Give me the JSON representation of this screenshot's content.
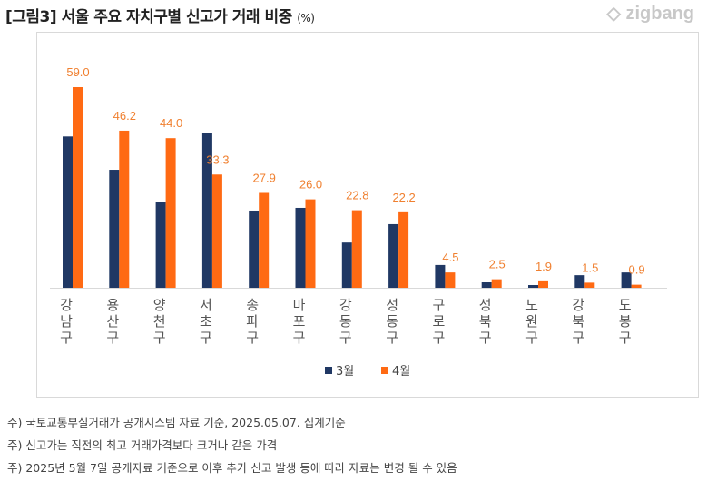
{
  "title": "[그림3] 서울 주요 자치구별 신고가 거래 비중",
  "title_unit": "(%)",
  "logo": "zigbang",
  "chart_data": {
    "type": "bar",
    "categories": [
      "강남구",
      "용산구",
      "양천구",
      "서초구",
      "송파구",
      "마포구",
      "강동구",
      "성동구",
      "구로구",
      "성북구",
      "노원구",
      "강북구",
      "도봉구"
    ],
    "series": [
      {
        "name": "3월",
        "color": "#203864",
        "values": [
          44.5,
          34.7,
          25.3,
          45.6,
          22.7,
          23.5,
          13.3,
          18.7,
          6.7,
          1.6,
          0.8,
          3.7,
          4.5
        ]
      },
      {
        "name": "4월",
        "color": "#FF6A13",
        "values": [
          59.0,
          46.2,
          44.0,
          33.3,
          27.9,
          26.0,
          22.8,
          22.2,
          4.5,
          2.5,
          1.9,
          1.5,
          0.9
        ]
      }
    ],
    "data_labels": [
      "59.0",
      "46.2",
      "44.0",
      "33.3",
      "27.9",
      "26.0",
      "22.8",
      "22.2",
      "4.5",
      "2.5",
      "1.9",
      "1.5",
      "0.9"
    ],
    "ylim": [
      0,
      60
    ],
    "grid": false,
    "legend": "bottom"
  },
  "notes": [
    "주) 국토교통부실거래가 공개시스템 자료 기준, 2025.05.07. 집계기준",
    "주) 신고가는 직전의 최고 거래가격보다 크거나 같은 가격",
    "주) 2025년 5월 7일 공개자료 기준으로 이후 추가 신고 발생 등에 따라 자료는 변경 될 수 있음"
  ]
}
